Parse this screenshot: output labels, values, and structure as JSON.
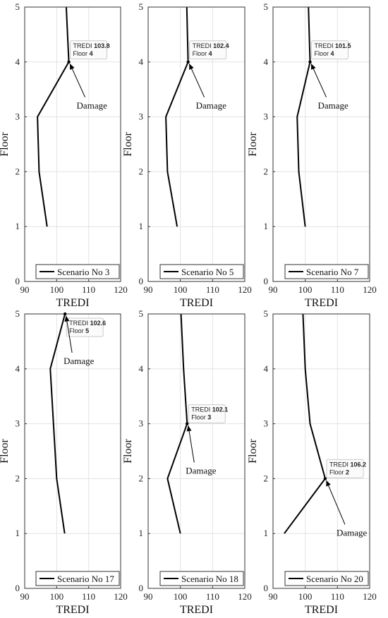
{
  "chart_data": [
    {
      "type": "line",
      "x": [
        97,
        94.5,
        94,
        103.8,
        103,
        102.5
      ],
      "y": [
        1,
        2,
        3,
        4,
        5,
        5.5
      ],
      "xlabel": "TREDI",
      "ylabel": "Floor",
      "xlim": [
        90,
        120
      ],
      "ylim": [
        0,
        5
      ],
      "xticks": [
        "90",
        "100",
        "110",
        "120"
      ],
      "yticks": [
        "0",
        "1",
        "2",
        "3",
        "4",
        "5"
      ],
      "legend": "Scenario No 3",
      "legend_placement": "bottom-right",
      "grid": true,
      "datatip": {
        "label": "TREDI",
        "value": "103.8",
        "floor_label": "Floor",
        "floor_value": "4",
        "x": 103.8,
        "y": 4
      },
      "annotation": "Damage"
    },
    {
      "type": "line",
      "x": [
        99,
        96,
        95.5,
        102.4,
        102,
        101.8
      ],
      "y": [
        1,
        2,
        3,
        4,
        5,
        5.5
      ],
      "xlabel": "TREDI",
      "ylabel": "Floor",
      "xlim": [
        90,
        120
      ],
      "ylim": [
        0,
        5
      ],
      "xticks": [
        "90",
        "100",
        "110",
        "120"
      ],
      "yticks": [
        "0",
        "1",
        "2",
        "3",
        "4",
        "5"
      ],
      "legend": "Scenario No 5",
      "legend_placement": "bottom-right",
      "grid": true,
      "datatip": {
        "label": "TREDI",
        "value": "102.4",
        "floor_label": "Floor",
        "floor_value": "4",
        "x": 102.4,
        "y": 4
      },
      "annotation": "Damage"
    },
    {
      "type": "line",
      "x": [
        100,
        98,
        97.5,
        101.5,
        101,
        100.8
      ],
      "y": [
        1,
        2,
        3,
        4,
        5,
        5.5
      ],
      "xlabel": "TREDI",
      "ylabel": "Floor",
      "xlim": [
        90,
        120
      ],
      "ylim": [
        0,
        5
      ],
      "xticks": [
        "90",
        "100",
        "110",
        "120"
      ],
      "yticks": [
        "0",
        "1",
        "2",
        "3",
        "4",
        "5"
      ],
      "legend": "Scenario No 7",
      "legend_placement": "bottom-right",
      "grid": true,
      "datatip": {
        "label": "TREDI",
        "value": "101.5",
        "floor_label": "Floor",
        "floor_value": "4",
        "x": 101.5,
        "y": 4
      },
      "annotation": "Damage"
    },
    {
      "type": "line",
      "x": [
        102.5,
        100,
        99,
        98,
        102.6
      ],
      "y": [
        1,
        2,
        3,
        4,
        5
      ],
      "xlabel": "TREDI",
      "ylabel": "Floor",
      "xlim": [
        90,
        120
      ],
      "ylim": [
        0,
        5
      ],
      "xticks": [
        "90",
        "100",
        "110",
        "120"
      ],
      "yticks": [
        "0",
        "1",
        "2",
        "3",
        "4",
        "5"
      ],
      "legend": "Scenario No 17",
      "legend_placement": "bottom-right",
      "grid": true,
      "datatip": {
        "label": "TREDI",
        "value": "102.6",
        "floor_label": "Floor",
        "floor_value": "5",
        "x": 102.6,
        "y": 5
      },
      "annotation": "Damage"
    },
    {
      "type": "line",
      "x": [
        100,
        96,
        102.1,
        101,
        100.2,
        100
      ],
      "y": [
        1,
        2,
        3,
        4,
        5,
        5.5
      ],
      "xlabel": "TREDI",
      "ylabel": "Floor",
      "xlim": [
        90,
        120
      ],
      "ylim": [
        0,
        5
      ],
      "xticks": [
        "90",
        "100",
        "110",
        "120"
      ],
      "yticks": [
        "0",
        "1",
        "2",
        "3",
        "4",
        "5"
      ],
      "legend": "Scenario No 18",
      "legend_placement": "bottom-right",
      "grid": true,
      "datatip": {
        "label": "TREDI",
        "value": "102.1",
        "floor_label": "Floor",
        "floor_value": "3",
        "x": 102.1,
        "y": 3
      },
      "annotation": "Damage"
    },
    {
      "type": "line",
      "x": [
        93.5,
        106.2,
        101.5,
        100,
        99.3,
        99
      ],
      "y": [
        1,
        2,
        3,
        4,
        5,
        5.5
      ],
      "xlabel": "TREDI",
      "ylabel": "Floor",
      "xlim": [
        90,
        120
      ],
      "ylim": [
        0,
        5
      ],
      "xticks": [
        "90",
        "100",
        "110",
        "120"
      ],
      "yticks": [
        "0",
        "1",
        "2",
        "3",
        "4",
        "5"
      ],
      "legend": "Scenario No 20",
      "legend_placement": "bottom-right",
      "grid": true,
      "datatip": {
        "label": "TREDI",
        "value": "106.2",
        "floor_label": "Floor",
        "floor_value": "2",
        "x": 106.2,
        "y": 2
      },
      "annotation": "Damage"
    }
  ]
}
